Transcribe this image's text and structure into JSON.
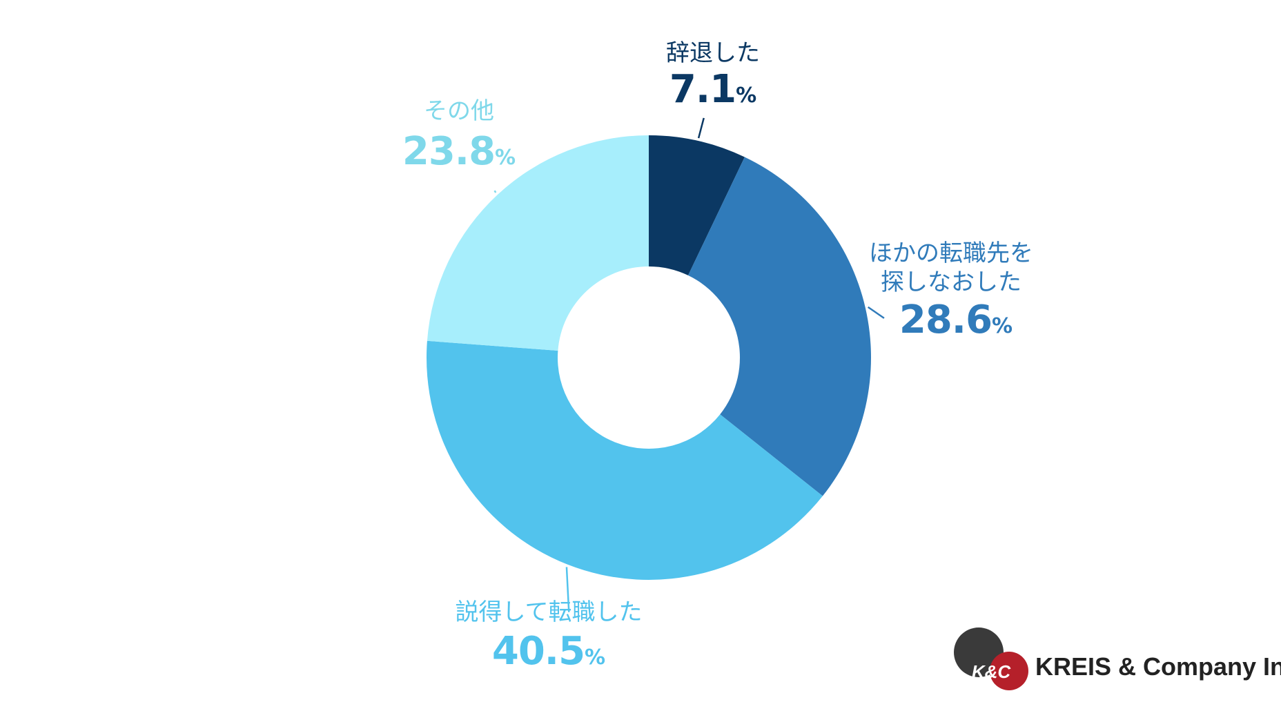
{
  "chart_data": {
    "type": "pie",
    "donut": true,
    "slices": [
      {
        "label": "辞退した",
        "value": 7.1,
        "color": "#0b3863"
      },
      {
        "label_lines": [
          "ほかの転職先を",
          "探しなおした"
        ],
        "value": 28.6,
        "color": "#307bba"
      },
      {
        "label": "説得して転職した",
        "value": 40.5,
        "color": "#52c3ed"
      },
      {
        "label": "その他",
        "value": 23.8,
        "color": "#a7eefc"
      }
    ],
    "value_suffix": "%",
    "label_colors": [
      "#0b3863",
      "#307bba",
      "#52c3ed",
      "#7fd8ea"
    ]
  },
  "logo": {
    "mark_text": "K&C",
    "company_name": "KREIS & Company Inc.",
    "colors": {
      "dark": "#3a3a3a",
      "red": "#b5202a",
      "text": "#222222"
    }
  }
}
